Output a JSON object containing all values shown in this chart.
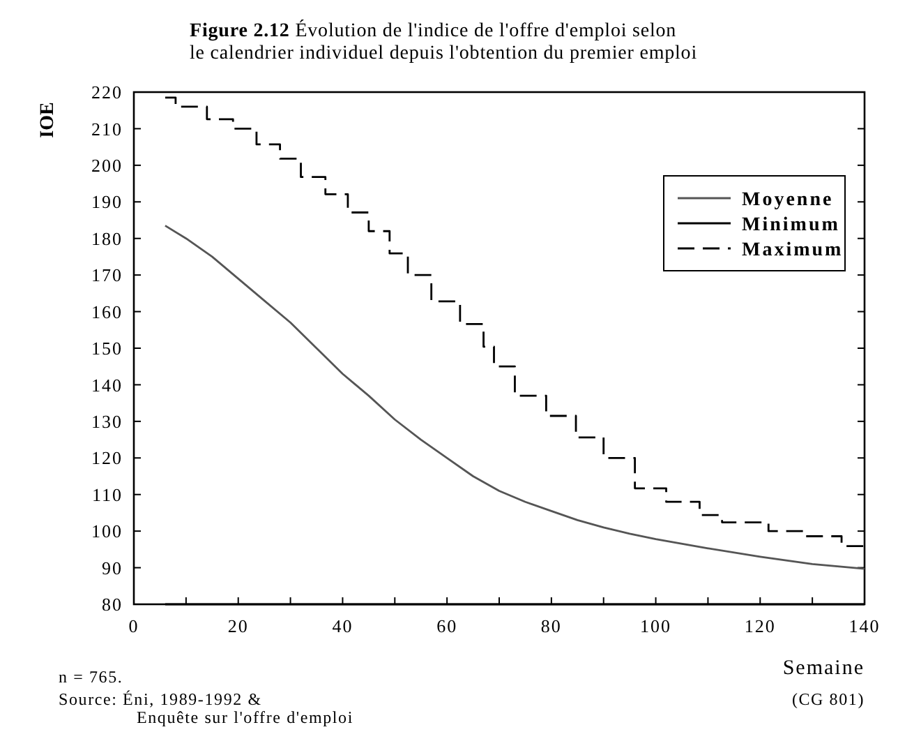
{
  "chart_data": {
    "type": "line",
    "title": "Figure 2.12 Évolution de l'indice de l'offre d'emploi selon\nle calendrier individuel depuis l'obtention du premier emploi",
    "xlabel": "Semaine",
    "ylabel": "IOE",
    "xlim": [
      0,
      140
    ],
    "ylim": [
      80,
      220
    ],
    "xticks": [
      0,
      {
        "value": 10,
        "label": null
      },
      20,
      {
        "value": 30,
        "label": null
      },
      40,
      {
        "value": 50,
        "label": null
      },
      60,
      {
        "value": 70,
        "label": null
      },
      80,
      {
        "value": 90,
        "label": null
      },
      100,
      {
        "value": 110,
        "label": null
      },
      120,
      {
        "value": 130,
        "label": null
      },
      140
    ],
    "yticks": [
      80,
      90,
      100,
      110,
      120,
      130,
      140,
      150,
      160,
      170,
      180,
      190,
      200,
      210,
      220
    ],
    "legend": "top right",
    "grid": false,
    "series": [
      {
        "name": "Moyenne",
        "color": "#555555",
        "line_style": "solid",
        "x": [
          6,
          10,
          15,
          20,
          25,
          30,
          35,
          40,
          45,
          50,
          55,
          60,
          65,
          70,
          75,
          80,
          85,
          90,
          95,
          100,
          110,
          120,
          130,
          140
        ],
        "values": [
          183.5,
          180,
          175,
          169,
          163,
          157,
          150,
          143,
          137,
          130.5,
          125,
          120,
          115,
          111,
          108,
          105.5,
          103,
          101,
          99.3,
          97.8,
          95.3,
          93,
          91,
          89.7
        ]
      },
      {
        "name": "Minimum",
        "color": "#000000",
        "line_style": "solid",
        "x": [
          6,
          140
        ],
        "values": [
          80,
          80
        ]
      },
      {
        "name": "Maximum",
        "type": "step",
        "color": "#000000",
        "line_style": "dashed",
        "x": [
          6,
          8,
          14,
          19,
          23.5,
          28,
          32,
          36.7,
          41,
          45,
          49,
          52.5,
          57,
          62.5,
          67,
          69,
          73,
          79,
          84.7,
          90,
          96,
          102,
          108.4,
          112.7,
          121.6,
          128.5,
          135.6,
          140
        ],
        "values": [
          218.5,
          216,
          212.6,
          210,
          205.7,
          201.8,
          196.8,
          192.1,
          187.1,
          182,
          175.9,
          170,
          162.8,
          156.6,
          150.4,
          145,
          137,
          131.5,
          125.6,
          120,
          111.7,
          108,
          104.4,
          102.4,
          100,
          98.6,
          95.9,
          95
        ]
      }
    ],
    "annotations": [
      "n = 765.",
      "Source: Éni, 1989-1992 &\nEnquête sur l'offre d'emploi",
      "(CG 801)"
    ]
  }
}
